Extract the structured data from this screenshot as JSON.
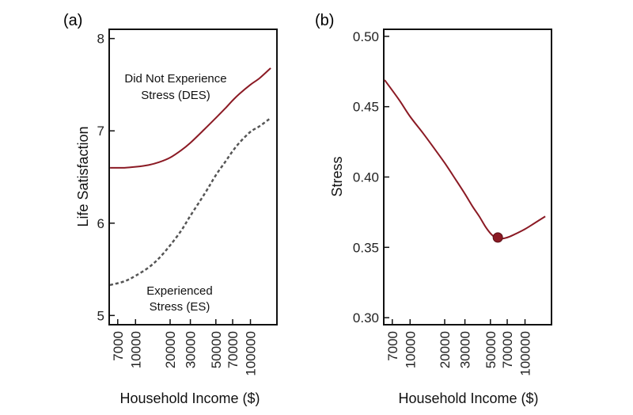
{
  "chart_data": [
    {
      "type": "line",
      "panel": "(a)",
      "xlabel": "Household Income ($)",
      "ylabel": "Life Satisfaction",
      "xscale": "log",
      "xlim": [
        5900,
        170000
      ],
      "ylim": [
        4.9,
        8.1
      ],
      "xticks": [
        7000,
        10000,
        20000,
        30000,
        50000,
        70000,
        100000
      ],
      "xtick_labels": [
        "7000",
        "10000",
        "20000",
        "30000",
        "50000",
        "70000",
        "100000"
      ],
      "yticks": [
        5,
        6,
        7,
        8
      ],
      "ytick_labels": [
        "5",
        "6",
        "7",
        "8"
      ],
      "series": [
        {
          "name": "Did Not Experience Stress (DES)",
          "label_lines": [
            "Did Not Experience",
            "Stress (DES)"
          ],
          "style": "solid",
          "color": "#8b1a24",
          "x": [
            6000,
            8000,
            10000,
            13000,
            16000,
            20000,
            25000,
            30000,
            40000,
            50000,
            60000,
            70000,
            80000,
            100000,
            120000,
            150000
          ],
          "y": [
            6.6,
            6.6,
            6.61,
            6.63,
            6.66,
            6.71,
            6.79,
            6.87,
            7.02,
            7.14,
            7.24,
            7.33,
            7.4,
            7.5,
            7.57,
            7.68
          ]
        },
        {
          "name": "Experienced Stress (ES)",
          "label_lines": [
            "Experienced",
            "Stress (ES)"
          ],
          "style": "dashed",
          "color": "#555555",
          "x": [
            6000,
            8000,
            10000,
            13000,
            16000,
            20000,
            25000,
            30000,
            40000,
            50000,
            60000,
            70000,
            80000,
            100000,
            120000,
            150000
          ],
          "y": [
            5.33,
            5.37,
            5.43,
            5.52,
            5.62,
            5.76,
            5.92,
            6.08,
            6.32,
            6.52,
            6.66,
            6.78,
            6.87,
            6.99,
            7.05,
            7.14
          ]
        }
      ]
    },
    {
      "type": "line",
      "panel": "(b)",
      "xlabel": "Household Income ($)",
      "ylabel": "Stress",
      "xscale": "log",
      "xlim": [
        5900,
        170000
      ],
      "ylim": [
        0.295,
        0.505
      ],
      "xticks": [
        7000,
        10000,
        20000,
        30000,
        50000,
        70000,
        100000
      ],
      "xtick_labels": [
        "7000",
        "10000",
        "20000",
        "30000",
        "50000",
        "70000",
        "100000"
      ],
      "yticks": [
        0.3,
        0.35,
        0.4,
        0.45,
        0.5
      ],
      "ytick_labels": [
        "0.30",
        "0.35",
        "0.40",
        "0.45",
        "0.50"
      ],
      "series": [
        {
          "name": "Stress",
          "style": "solid",
          "color": "#8b1a24",
          "x": [
            6000,
            8000,
            10000,
            13000,
            16000,
            20000,
            25000,
            30000,
            35000,
            40000,
            45000,
            50000,
            55000,
            60000,
            70000,
            80000,
            100000,
            120000,
            150000
          ],
          "y": [
            0.469,
            0.455,
            0.443,
            0.431,
            0.421,
            0.41,
            0.398,
            0.388,
            0.379,
            0.372,
            0.365,
            0.36,
            0.357,
            0.356,
            0.357,
            0.359,
            0.363,
            0.367,
            0.372
          ]
        }
      ],
      "marker": {
        "x": 58000,
        "y": 0.357,
        "color": "#8b1a24",
        "note": "minimum point"
      }
    }
  ]
}
